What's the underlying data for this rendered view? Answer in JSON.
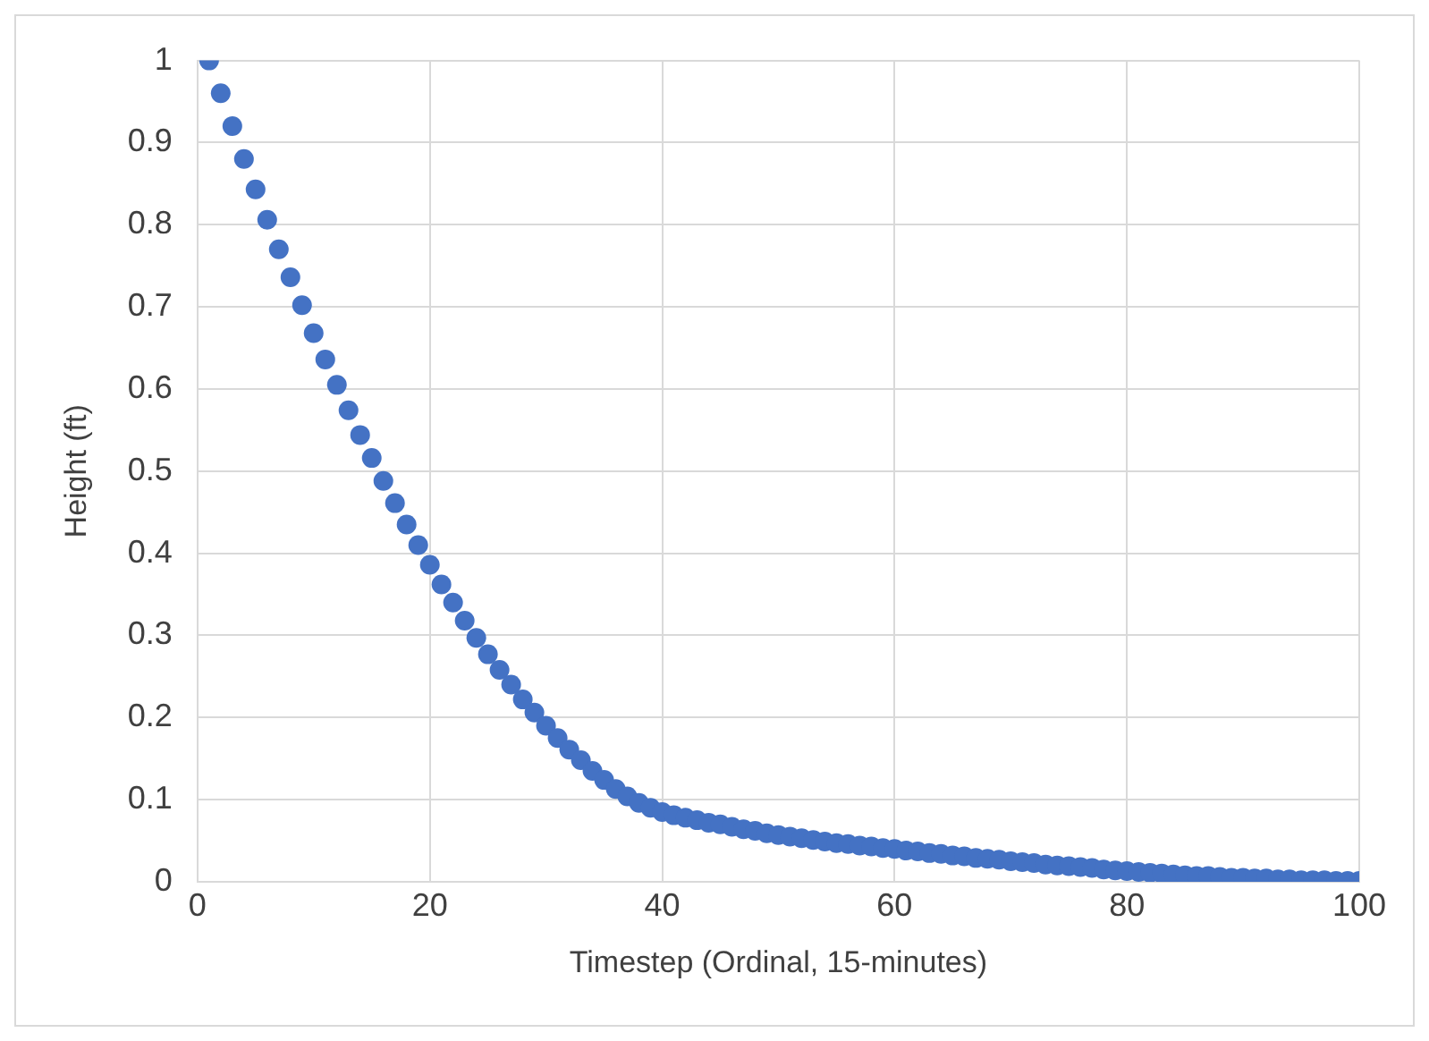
{
  "chart_data": {
    "type": "scatter",
    "xlabel": "Timestep (Ordinal, 15-minutes)",
    "ylabel": "Height (ft)",
    "x": [
      1,
      2,
      3,
      4,
      5,
      6,
      7,
      8,
      9,
      10,
      11,
      12,
      13,
      14,
      15,
      16,
      17,
      18,
      19,
      20,
      21,
      22,
      23,
      24,
      25,
      26,
      27,
      28,
      29,
      30,
      31,
      32,
      33,
      34,
      35,
      36,
      37,
      38,
      39,
      40,
      41,
      42,
      43,
      44,
      45,
      46,
      47,
      48,
      49,
      50,
      51,
      52,
      53,
      54,
      55,
      56,
      57,
      58,
      59,
      60,
      61,
      62,
      63,
      64,
      65,
      66,
      67,
      68,
      69,
      70,
      71,
      72,
      73,
      74,
      75,
      76,
      77,
      78,
      79,
      80,
      81,
      82,
      83,
      84,
      85,
      86,
      87,
      88,
      89,
      90,
      91,
      92,
      93,
      94,
      95,
      96,
      97,
      98,
      99,
      100
    ],
    "series": [
      {
        "color": "#4472c4",
        "values": [
          1.0,
          0.96,
          0.92,
          0.88,
          0.843,
          0.806,
          0.77,
          0.736,
          0.702,
          0.668,
          0.636,
          0.605,
          0.574,
          0.544,
          0.516,
          0.488,
          0.461,
          0.435,
          0.41,
          0.386,
          0.362,
          0.34,
          0.318,
          0.297,
          0.277,
          0.258,
          0.24,
          0.222,
          0.206,
          0.19,
          0.175,
          0.161,
          0.148,
          0.135,
          0.124,
          0.113,
          0.104,
          0.096,
          0.09,
          0.085,
          0.081,
          0.078,
          0.075,
          0.072,
          0.07,
          0.067,
          0.064,
          0.062,
          0.059,
          0.057,
          0.055,
          0.053,
          0.051,
          0.049,
          0.047,
          0.046,
          0.044,
          0.043,
          0.041,
          0.04,
          0.038,
          0.037,
          0.035,
          0.034,
          0.032,
          0.031,
          0.029,
          0.028,
          0.027,
          0.025,
          0.024,
          0.023,
          0.021,
          0.02,
          0.019,
          0.018,
          0.017,
          0.015,
          0.014,
          0.013,
          0.012,
          0.011,
          0.01,
          0.009,
          0.008,
          0.007,
          0.007,
          0.006,
          0.005,
          0.005,
          0.004,
          0.004,
          0.003,
          0.003,
          0.002,
          0.002,
          0.002,
          0.001,
          0.001,
          0.001
        ]
      }
    ],
    "xlim": [
      0,
      100
    ],
    "xticks": [
      0,
      20,
      40,
      60,
      80,
      100
    ],
    "ylim": [
      0,
      1
    ],
    "yticks": [
      0,
      0.1,
      0.2,
      0.3,
      0.4,
      0.5,
      0.6,
      0.7,
      0.8,
      0.9,
      1
    ],
    "grid": true,
    "legend": false,
    "marker": "circle"
  }
}
